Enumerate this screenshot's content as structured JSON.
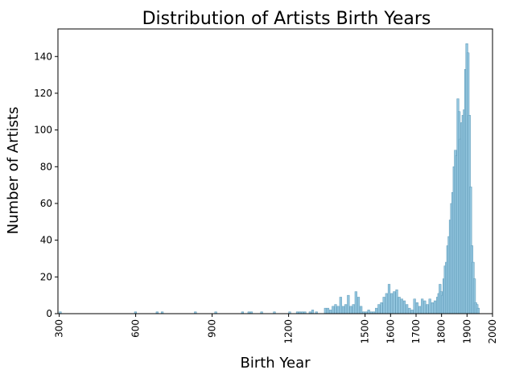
{
  "chart_data": {
    "type": "bar",
    "title": "Distribution of Artists Birth Years",
    "xlabel": "Birth Year",
    "ylabel": "Number of Artists",
    "xlim": [
      295,
      2000
    ],
    "ylim": [
      0,
      155
    ],
    "x_ticks": [
      300,
      600,
      900,
      1200,
      1500,
      1600,
      1700,
      1800,
      1900,
      2000
    ],
    "y_ticks": [
      0,
      20,
      40,
      60,
      80,
      100,
      120,
      140
    ],
    "grid": false,
    "bin_width": 8.5,
    "colors": {
      "bar_fill": "#92c5de",
      "bar_edge": "#5e9ab8",
      "axis": "#000000"
    },
    "bins": [
      {
        "x": 300,
        "y": 1
      },
      {
        "x": 595,
        "y": 1
      },
      {
        "x": 680,
        "y": 1
      },
      {
        "x": 700,
        "y": 1
      },
      {
        "x": 830,
        "y": 1
      },
      {
        "x": 910,
        "y": 1
      },
      {
        "x": 1015,
        "y": 1
      },
      {
        "x": 1040,
        "y": 1
      },
      {
        "x": 1050,
        "y": 1
      },
      {
        "x": 1090,
        "y": 1
      },
      {
        "x": 1140,
        "y": 1
      },
      {
        "x": 1200,
        "y": 1
      },
      {
        "x": 1230,
        "y": 1
      },
      {
        "x": 1240,
        "y": 1
      },
      {
        "x": 1250,
        "y": 1
      },
      {
        "x": 1260,
        "y": 1
      },
      {
        "x": 1280,
        "y": 1
      },
      {
        "x": 1290,
        "y": 2
      },
      {
        "x": 1305,
        "y": 1
      },
      {
        "x": 1340,
        "y": 3
      },
      {
        "x": 1350,
        "y": 3
      },
      {
        "x": 1360,
        "y": 2
      },
      {
        "x": 1370,
        "y": 4
      },
      {
        "x": 1380,
        "y": 5
      },
      {
        "x": 1390,
        "y": 4
      },
      {
        "x": 1400,
        "y": 9
      },
      {
        "x": 1410,
        "y": 4
      },
      {
        "x": 1420,
        "y": 5
      },
      {
        "x": 1430,
        "y": 10
      },
      {
        "x": 1440,
        "y": 4
      },
      {
        "x": 1450,
        "y": 5
      },
      {
        "x": 1460,
        "y": 12
      },
      {
        "x": 1470,
        "y": 9
      },
      {
        "x": 1480,
        "y": 4
      },
      {
        "x": 1490,
        "y": 1
      },
      {
        "x": 1500,
        "y": 1
      },
      {
        "x": 1510,
        "y": 2
      },
      {
        "x": 1520,
        "y": 1
      },
      {
        "x": 1530,
        "y": 1
      },
      {
        "x": 1540,
        "y": 3
      },
      {
        "x": 1550,
        "y": 5
      },
      {
        "x": 1560,
        "y": 6
      },
      {
        "x": 1570,
        "y": 9
      },
      {
        "x": 1580,
        "y": 11
      },
      {
        "x": 1590,
        "y": 16
      },
      {
        "x": 1600,
        "y": 11
      },
      {
        "x": 1610,
        "y": 12
      },
      {
        "x": 1620,
        "y": 13
      },
      {
        "x": 1630,
        "y": 9
      },
      {
        "x": 1640,
        "y": 8
      },
      {
        "x": 1650,
        "y": 7
      },
      {
        "x": 1660,
        "y": 5
      },
      {
        "x": 1670,
        "y": 3
      },
      {
        "x": 1680,
        "y": 2
      },
      {
        "x": 1690,
        "y": 8
      },
      {
        "x": 1700,
        "y": 6
      },
      {
        "x": 1710,
        "y": 4
      },
      {
        "x": 1720,
        "y": 8
      },
      {
        "x": 1730,
        "y": 7
      },
      {
        "x": 1740,
        "y": 5
      },
      {
        "x": 1750,
        "y": 8
      },
      {
        "x": 1760,
        "y": 6
      },
      {
        "x": 1770,
        "y": 7
      },
      {
        "x": 1780,
        "y": 9
      },
      {
        "x": 1785,
        "y": 11
      },
      {
        "x": 1790,
        "y": 16
      },
      {
        "x": 1795,
        "y": 12
      },
      {
        "x": 1800,
        "y": 10
      },
      {
        "x": 1805,
        "y": 19
      },
      {
        "x": 1810,
        "y": 26
      },
      {
        "x": 1815,
        "y": 28
      },
      {
        "x": 1820,
        "y": 37
      },
      {
        "x": 1825,
        "y": 42
      },
      {
        "x": 1830,
        "y": 51
      },
      {
        "x": 1835,
        "y": 60
      },
      {
        "x": 1840,
        "y": 66
      },
      {
        "x": 1845,
        "y": 80
      },
      {
        "x": 1850,
        "y": 89
      },
      {
        "x": 1855,
        "y": 86
      },
      {
        "x": 1860,
        "y": 117
      },
      {
        "x": 1865,
        "y": 110
      },
      {
        "x": 1870,
        "y": 95
      },
      {
        "x": 1875,
        "y": 104
      },
      {
        "x": 1880,
        "y": 108
      },
      {
        "x": 1885,
        "y": 111
      },
      {
        "x": 1890,
        "y": 133
      },
      {
        "x": 1895,
        "y": 147
      },
      {
        "x": 1900,
        "y": 142
      },
      {
        "x": 1905,
        "y": 108
      },
      {
        "x": 1910,
        "y": 69
      },
      {
        "x": 1915,
        "y": 37
      },
      {
        "x": 1920,
        "y": 28
      },
      {
        "x": 1925,
        "y": 19
      },
      {
        "x": 1930,
        "y": 6
      },
      {
        "x": 1935,
        "y": 5
      },
      {
        "x": 1940,
        "y": 3
      }
    ]
  }
}
